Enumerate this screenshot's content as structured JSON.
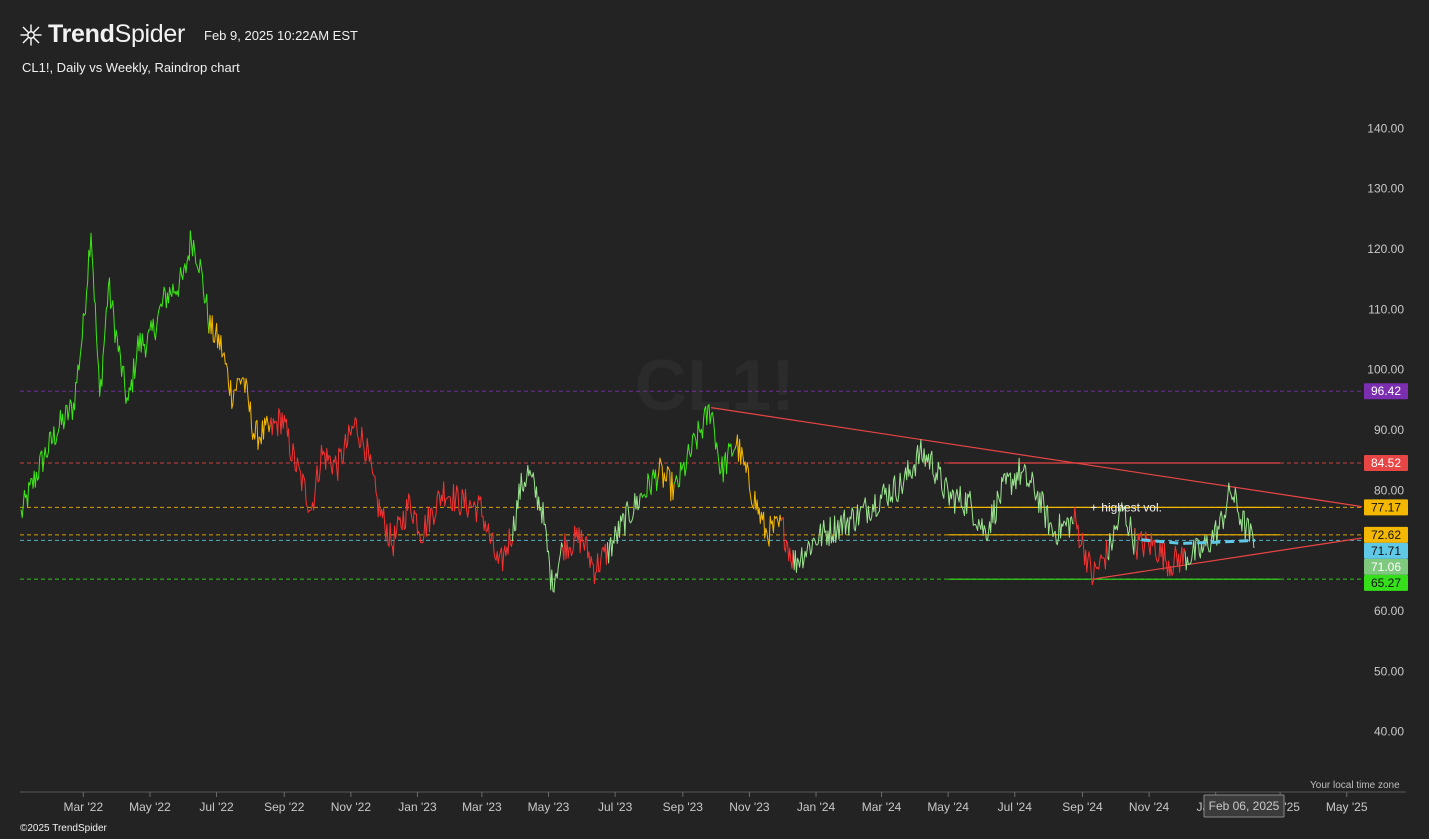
{
  "header": {
    "brand_bold": "Trend",
    "brand_light": "Spider",
    "date": "Feb 9, 2025 10:22AM EST",
    "copyright": "©2025 TrendSpider",
    "timezone_note": "Your local time zone",
    "cursor_date": "Feb 06, 2025"
  },
  "chart_data": {
    "type": "line",
    "title": "CL1!, Daily vs Weekly, Raindrop chart",
    "watermark": "CL1!",
    "ylim": [
      30,
      148
    ],
    "y_ticks": [
      140,
      130,
      120,
      110,
      100,
      90,
      80,
      70,
      60,
      50,
      40
    ],
    "y_tick_labels": [
      "140.00",
      "130.00",
      "120.00",
      "110.00",
      "100.00",
      "90.00",
      "80.00",
      "70.00",
      "60.00",
      "50.00",
      "40.00"
    ],
    "x_ticks": [
      "2022-03-01",
      "2022-05-01",
      "2022-07-01",
      "2022-09-01",
      "2022-11-01",
      "2023-01-01",
      "2023-03-01",
      "2023-05-01",
      "2023-07-01",
      "2023-09-01",
      "2023-11-01",
      "2024-01-01",
      "2024-03-01",
      "2024-05-01",
      "2024-07-01",
      "2024-09-01",
      "2024-11-01",
      "2025-01-01",
      "2025-03-01",
      "2025-05-01"
    ],
    "x_tick_labels": [
      "Mar '22",
      "May '22",
      "Jul '22",
      "Sep '22",
      "Nov '22",
      "Jan '23",
      "Mar '23",
      "May '23",
      "Jul '23",
      "Sep '23",
      "Nov '23",
      "Jan '24",
      "Mar '24",
      "May '24",
      "Jul '24",
      "Sep '24",
      "Nov '24",
      "Jan '25",
      "Mar '25",
      "May '25"
    ],
    "xlim": [
      "2022-01-02",
      "2025-05-15"
    ],
    "colors": {
      "strong_up": "#3ee619",
      "weak_up": "#9be38f",
      "caution": "#f5b800",
      "down": "#f53232"
    },
    "series": [
      {
        "points": [
          [
            "2022-01-03",
            76,
            "weak_up"
          ],
          [
            "2022-01-20",
            84,
            "strong_up"
          ],
          [
            "2022-02-05",
            90,
            "strong_up"
          ],
          [
            "2022-02-20",
            94,
            "strong_up"
          ],
          [
            "2022-03-01",
            107,
            "strong_up"
          ],
          [
            "2022-03-08",
            123.7,
            "strong_up"
          ],
          [
            "2022-03-16",
            95,
            "strong_up"
          ],
          [
            "2022-03-24",
            114,
            "strong_up"
          ],
          [
            "2022-04-05",
            100,
            "strong_up"
          ],
          [
            "2022-04-11",
            94,
            "strong_up"
          ],
          [
            "2022-04-20",
            104,
            "strong_up"
          ],
          [
            "2022-05-01",
            105,
            "strong_up"
          ],
          [
            "2022-05-15",
            112,
            "strong_up"
          ],
          [
            "2022-06-01",
            115,
            "strong_up"
          ],
          [
            "2022-06-08",
            122,
            "strong_up"
          ],
          [
            "2022-06-15",
            118,
            "strong_up"
          ],
          [
            "2022-06-25",
            107,
            "strong_up"
          ],
          [
            "2022-07-05",
            104,
            "caution"
          ],
          [
            "2022-07-15",
            96,
            "caution"
          ],
          [
            "2022-07-25",
            99,
            "caution"
          ],
          [
            "2022-08-05",
            89,
            "caution"
          ],
          [
            "2022-08-20",
            90,
            "caution"
          ],
          [
            "2022-08-30",
            92,
            "down"
          ],
          [
            "2022-09-10",
            85,
            "down"
          ],
          [
            "2022-09-26",
            77,
            "down"
          ],
          [
            "2022-10-05",
            86,
            "down"
          ],
          [
            "2022-10-20",
            84,
            "down"
          ],
          [
            "2022-11-05",
            91,
            "down"
          ],
          [
            "2022-11-15",
            87,
            "down"
          ],
          [
            "2022-11-25",
            78,
            "down"
          ],
          [
            "2022-12-09",
            71,
            "down"
          ],
          [
            "2022-12-25",
            78,
            "down"
          ],
          [
            "2023-01-05",
            73,
            "down"
          ],
          [
            "2023-01-25",
            80,
            "down"
          ],
          [
            "2023-02-10",
            78,
            "down"
          ],
          [
            "2023-02-28",
            77,
            "down"
          ],
          [
            "2023-03-17",
            67,
            "down"
          ],
          [
            "2023-03-30",
            74,
            "down"
          ],
          [
            "2023-04-05",
            80,
            "weak_up"
          ],
          [
            "2023-04-12",
            83,
            "weak_up"
          ],
          [
            "2023-04-25",
            77,
            "weak_up"
          ],
          [
            "2023-05-04",
            64.5,
            "weak_up"
          ],
          [
            "2023-05-15",
            71,
            "weak_up"
          ],
          [
            "2023-06-01",
            72,
            "down"
          ],
          [
            "2023-06-12",
            67,
            "down"
          ],
          [
            "2023-06-25",
            70,
            "down"
          ],
          [
            "2023-07-10",
            75,
            "weak_up"
          ],
          [
            "2023-07-25",
            79,
            "weak_up"
          ],
          [
            "2023-08-10",
            83,
            "strong_up"
          ],
          [
            "2023-08-25",
            80,
            "caution"
          ],
          [
            "2023-09-10",
            87,
            "strong_up"
          ],
          [
            "2023-09-27",
            93.7,
            "strong_up"
          ],
          [
            "2023-10-06",
            83,
            "strong_up"
          ],
          [
            "2023-10-20",
            88,
            "strong_up"
          ],
          [
            "2023-11-01",
            81,
            "caution"
          ],
          [
            "2023-11-16",
            73,
            "caution"
          ],
          [
            "2023-12-01",
            74,
            "caution"
          ],
          [
            "2023-12-12",
            68,
            "down"
          ],
          [
            "2024-01-01",
            72,
            "weak_up"
          ],
          [
            "2024-01-20",
            74,
            "weak_up"
          ],
          [
            "2024-02-10",
            76,
            "weak_up"
          ],
          [
            "2024-03-01",
            79,
            "weak_up"
          ],
          [
            "2024-03-20",
            81,
            "weak_up"
          ],
          [
            "2024-04-05",
            86,
            "weak_up"
          ],
          [
            "2024-04-15",
            85,
            "weak_up"
          ],
          [
            "2024-05-01",
            79,
            "weak_up"
          ],
          [
            "2024-05-20",
            78,
            "weak_up"
          ],
          [
            "2024-06-04",
            73,
            "weak_up"
          ],
          [
            "2024-06-20",
            80,
            "weak_up"
          ],
          [
            "2024-07-05",
            83,
            "weak_up"
          ],
          [
            "2024-07-20",
            80,
            "weak_up"
          ],
          [
            "2024-08-05",
            73,
            "weak_up"
          ],
          [
            "2024-08-25",
            75,
            "weak_up"
          ],
          [
            "2024-09-05",
            69,
            "down"
          ],
          [
            "2024-09-10",
            65.7,
            "down"
          ],
          [
            "2024-09-25",
            70,
            "down"
          ],
          [
            "2024-10-08",
            77,
            "weak_up"
          ],
          [
            "2024-10-20",
            71,
            "weak_up"
          ],
          [
            "2024-11-05",
            71,
            "down"
          ],
          [
            "2024-11-20",
            68,
            "down"
          ],
          [
            "2024-12-05",
            69,
            "down"
          ],
          [
            "2024-12-20",
            70,
            "weak_up"
          ],
          [
            "2025-01-05",
            74,
            "weak_up"
          ],
          [
            "2025-01-15",
            80,
            "weak_up"
          ],
          [
            "2025-01-25",
            75,
            "weak_up"
          ],
          [
            "2025-02-06",
            71,
            "weak_up"
          ]
        ]
      }
    ],
    "levels": [
      {
        "value": 96.42,
        "label": "96.42",
        "color": "#7b2fb0",
        "style": "dashed"
      },
      {
        "value": 84.52,
        "label": "84.52",
        "color": "#e84545",
        "style": "dashed"
      },
      {
        "value": 77.17,
        "label": "77.17",
        "color": "#f5b800",
        "style": "dashed"
      },
      {
        "value": 72.62,
        "label": "72.62",
        "color": "#f5b800",
        "style": "dashed"
      },
      {
        "value": 71.71,
        "label": "71.71",
        "color": "#5ec8e6",
        "style": "dashed"
      },
      {
        "value": 71.06,
        "label": "71.06",
        "color": "#7fc97f",
        "style": "none"
      },
      {
        "value": 65.27,
        "label": "65.27",
        "color": "#35e01a",
        "style": "dashed"
      }
    ],
    "trendlines": [
      {
        "x1": "2023-09-27",
        "y1": 93.7,
        "x2": "2025-05-15",
        "y2": 77.3,
        "color": "#e84545"
      },
      {
        "x1": "2024-09-10",
        "y1": 65.27,
        "x2": "2025-05-15",
        "y2": 72.1,
        "color": "#e84545"
      }
    ],
    "zones": [
      {
        "x1": "2024-05-01",
        "x2": "2025-03-01",
        "value": 84.52,
        "color": "#e84545"
      },
      {
        "x1": "2024-05-01",
        "x2": "2025-03-01",
        "value": 77.17,
        "color": "#f5b800"
      },
      {
        "x1": "2024-05-01",
        "x2": "2025-03-01",
        "value": 72.62,
        "color": "#f5b800"
      },
      {
        "x1": "2024-05-01",
        "x2": "2025-03-01",
        "value": 65.27,
        "color": "#35e01a"
      }
    ],
    "vwap": {
      "color": "#5ec8e6",
      "points": [
        [
          "2024-10-25",
          71.8
        ],
        [
          "2024-12-01",
          71.2
        ],
        [
          "2025-01-01",
          71.4
        ],
        [
          "2025-02-06",
          71.7
        ]
      ]
    },
    "annotations": [
      {
        "text": "highest vol.",
        "x": "2024-09-10",
        "y": 77.17
      }
    ]
  }
}
